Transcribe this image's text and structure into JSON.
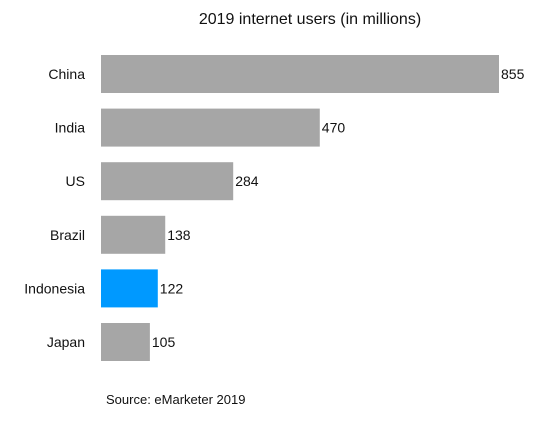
{
  "chart_data": {
    "type": "bar",
    "orientation": "horizontal",
    "title": "2019 internet users (in millions)",
    "categories": [
      "China",
      "India",
      "US",
      "Brazil",
      "Indonesia",
      "Japan"
    ],
    "values": [
      855,
      470,
      284,
      138,
      122,
      105
    ],
    "colors": [
      "#a6a6a6",
      "#a6a6a6",
      "#a6a6a6",
      "#a6a6a6",
      "#0099ff",
      "#a6a6a6"
    ],
    "highlight_category": "Indonesia",
    "xlim": [
      0,
      855
    ],
    "grid": false,
    "legend": "none"
  },
  "source": "Source: eMarketer 2019"
}
